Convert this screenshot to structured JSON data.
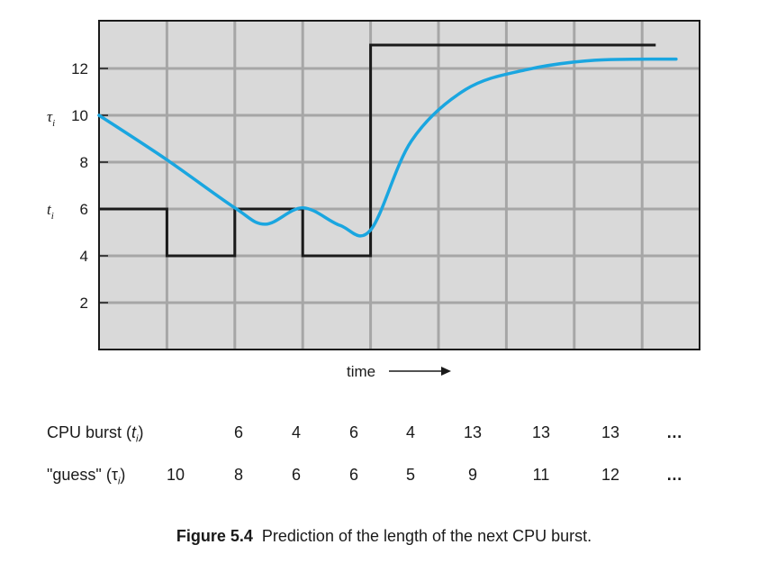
{
  "chart_data": {
    "type": "line",
    "title": "",
    "xlabel": "time",
    "x_axis_arrow": "right-arrow",
    "ylabel_burst_symbol": "t",
    "ylabel_burst_sub": "i",
    "ylabel_guess_symbol": "τ",
    "ylabel_guess_sub": "i",
    "ylim": [
      0,
      14
    ],
    "xlim": [
      0,
      9
    ],
    "yticks": [
      2,
      4,
      6,
      8,
      10,
      12
    ],
    "grid": true,
    "background_color": "#d9d9d9",
    "grid_color": "#a6a6a6",
    "series": [
      {
        "name": "CPU burst (t_i)",
        "style": "step",
        "color": "#1a1a1a",
        "x": [
          0,
          1,
          2,
          3,
          4,
          5,
          6,
          7,
          8.2
        ],
        "values": [
          6,
          4,
          6,
          4,
          13,
          13,
          13,
          13,
          13
        ]
      },
      {
        "name": "\"guess\" (τ_i)",
        "style": "smooth",
        "color": "#1aa6e0",
        "x": [
          0,
          1,
          2,
          2.45,
          3,
          3.55,
          4,
          4.6,
          5.4,
          6.3,
          7.3,
          8.5
        ],
        "values": [
          10,
          8.1,
          6.05,
          5.35,
          6.05,
          5.3,
          5.1,
          8.9,
          11.1,
          11.95,
          12.35,
          12.4
        ]
      }
    ]
  },
  "table": {
    "burst_label": "CPU burst (",
    "burst_symbol": "t",
    "burst_sub": "i",
    "burst_close": ")",
    "guess_label": "\"guess\" (",
    "guess_symbol": "τ",
    "guess_sub": "i",
    "guess_close": ")",
    "burst_values": [
      "6",
      "4",
      "6",
      "4",
      "13",
      "13",
      "13"
    ],
    "guess_values": [
      "10",
      "8",
      "6",
      "6",
      "5",
      "9",
      "11",
      "12"
    ],
    "ellipsis": "…"
  },
  "caption": {
    "label": "Figure 5.4",
    "text": "Prediction of the length of the next CPU burst."
  }
}
